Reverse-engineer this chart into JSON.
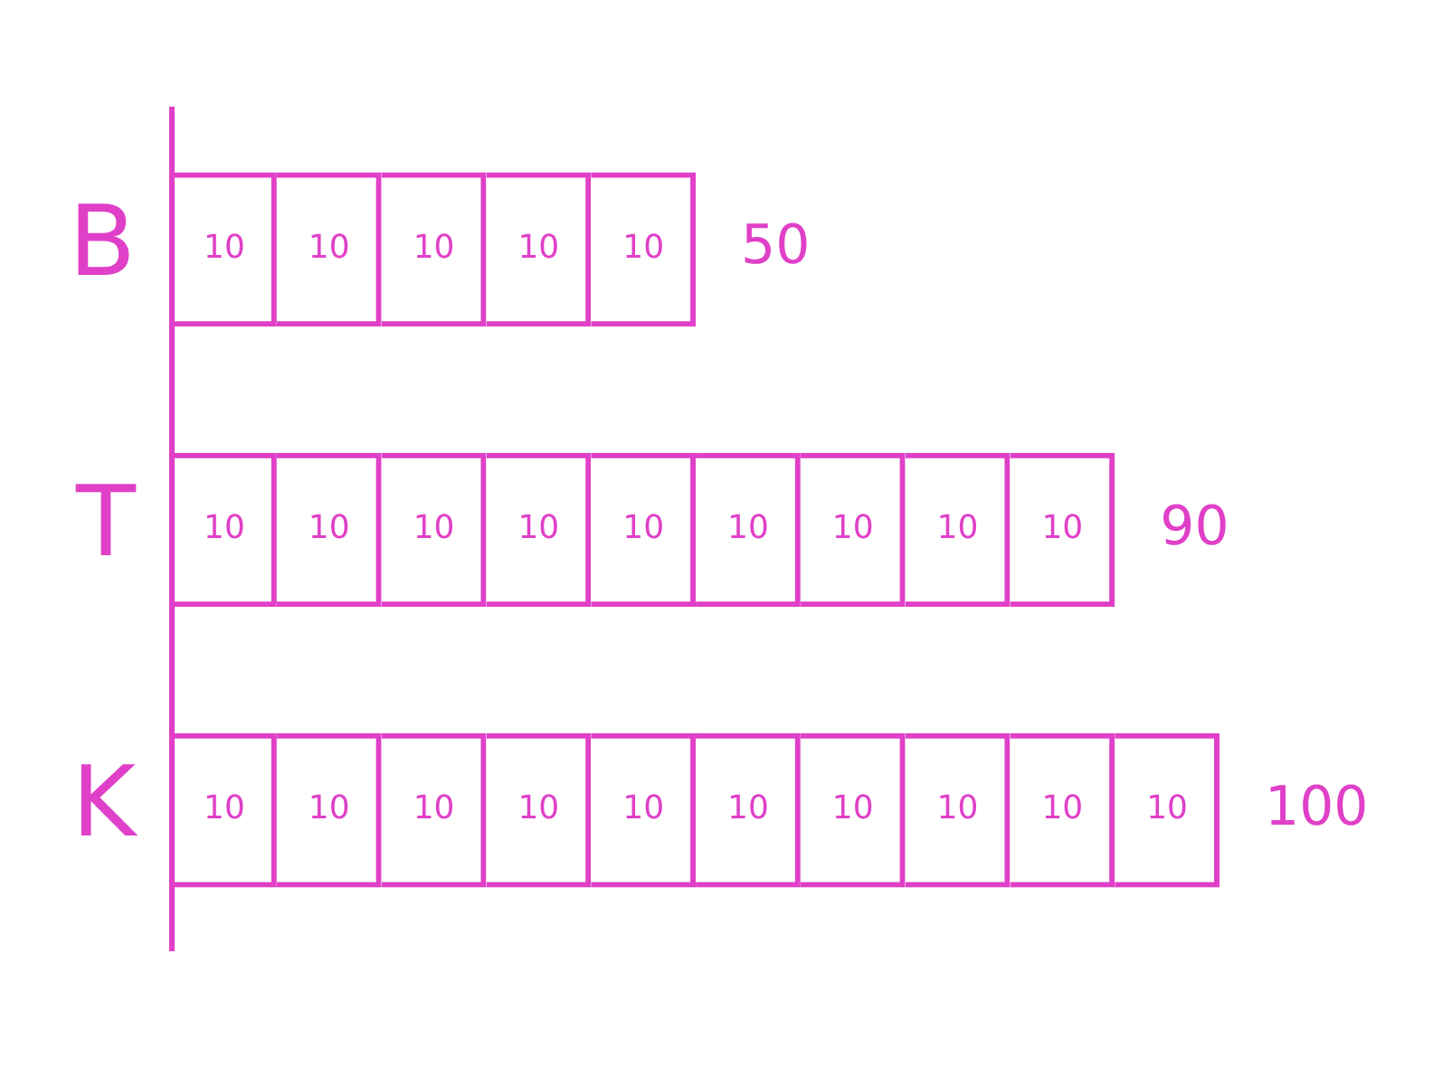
{
  "chart_data": {
    "type": "bar",
    "orientation": "horizontal",
    "stacked": true,
    "categories": [
      "B",
      "T",
      "K"
    ],
    "series": [
      {
        "color": "#e040c8",
        "values": [
          10,
          10,
          10
        ]
      },
      {
        "color": "#e040c8",
        "values": [
          10,
          10,
          10
        ]
      },
      {
        "color": "#e040c8",
        "values": [
          10,
          10,
          10
        ]
      },
      {
        "color": "#e040c8",
        "values": [
          10,
          10,
          10
        ]
      },
      {
        "color": "#e040c8",
        "values": [
          10,
          10,
          10
        ]
      },
      {
        "color": "#e040c8",
        "values": [
          null,
          10,
          10
        ]
      },
      {
        "color": "#e040c8",
        "values": [
          null,
          10,
          10
        ]
      },
      {
        "color": "#e040c8",
        "values": [
          null,
          10,
          10
        ]
      },
      {
        "color": "#e040c8",
        "values": [
          null,
          10,
          10
        ]
      },
      {
        "color": "#e040c8",
        "values": [
          null,
          null,
          10
        ]
      }
    ],
    "data_labels": true,
    "totals": [
      "50",
      "90",
      "100"
    ],
    "tick_labels": "y",
    "grid": false,
    "legend": false
  }
}
